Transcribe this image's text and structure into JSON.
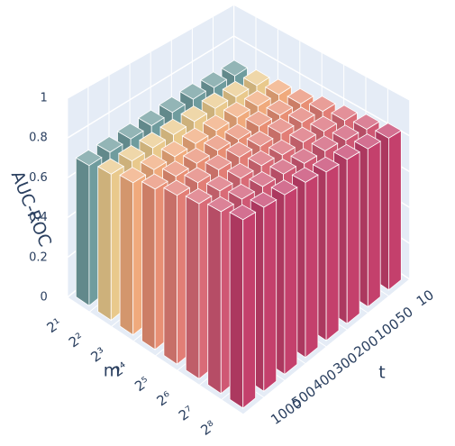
{
  "chart_data": {
    "type": "bar3d",
    "x_label": "m",
    "y_label": "t",
    "z_label": "AUC-ROC",
    "x": [
      "2¹",
      "2²",
      "2³",
      "2⁴",
      "2⁵",
      "2⁶",
      "2⁷",
      "2⁸"
    ],
    "y": [
      "10",
      "50",
      "100",
      "200",
      "300",
      "400",
      "500",
      "1000"
    ],
    "colors": [
      "#6f9c9e",
      "#e9c98c",
      "#f0aa7c",
      "#e88f74",
      "#e27e76",
      "#d96b77",
      "#cf5874",
      "#c4406c"
    ],
    "z": [
      [
        0.68,
        0.69,
        0.7,
        0.7,
        0.7,
        0.7,
        0.7,
        0.7
      ],
      [
        0.7,
        0.71,
        0.72,
        0.72,
        0.72,
        0.72,
        0.72,
        0.72
      ],
      [
        0.72,
        0.73,
        0.74,
        0.74,
        0.74,
        0.74,
        0.74,
        0.74
      ],
      [
        0.74,
        0.75,
        0.76,
        0.76,
        0.77,
        0.77,
        0.77,
        0.77
      ],
      [
        0.77,
        0.78,
        0.79,
        0.79,
        0.8,
        0.8,
        0.8,
        0.8
      ],
      [
        0.79,
        0.8,
        0.81,
        0.81,
        0.82,
        0.82,
        0.82,
        0.82
      ],
      [
        0.81,
        0.82,
        0.83,
        0.83,
        0.84,
        0.84,
        0.84,
        0.84
      ],
      [
        0.83,
        0.84,
        0.85,
        0.85,
        0.86,
        0.86,
        0.86,
        0.86
      ]
    ],
    "zlim": [
      0,
      1
    ],
    "zticks": [
      0,
      0.2,
      0.4,
      0.6,
      0.8,
      1
    ],
    "grid": true
  }
}
